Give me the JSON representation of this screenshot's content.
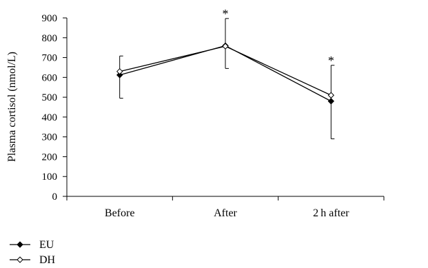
{
  "chart_data": {
    "type": "line",
    "categories": [
      "Before",
      "After",
      "2 h after"
    ],
    "ylabel": "Plasma cortisol (nmol/L)",
    "xlabel": "",
    "ylim": [
      0,
      900
    ],
    "yticks": [
      0,
      100,
      200,
      300,
      400,
      500,
      600,
      700,
      800,
      900
    ],
    "grid": false,
    "legend_position": "bottom-left",
    "series": [
      {
        "name": "EU",
        "marker": "filled-diamond",
        "values": [
          612,
          760,
          480
        ],
        "error_lower": [
          495,
          645,
          290
        ],
        "error_upper": [
          null,
          897,
          661
        ]
      },
      {
        "name": "DH",
        "marker": "open-diamond",
        "values": [
          630,
          757,
          510
        ],
        "error_lower": [
          null,
          null,
          null
        ],
        "error_upper": [
          708,
          null,
          null
        ]
      }
    ],
    "annotations": [
      {
        "category": "After",
        "text": "*"
      },
      {
        "category": "2 h after",
        "text": "*"
      }
    ]
  }
}
